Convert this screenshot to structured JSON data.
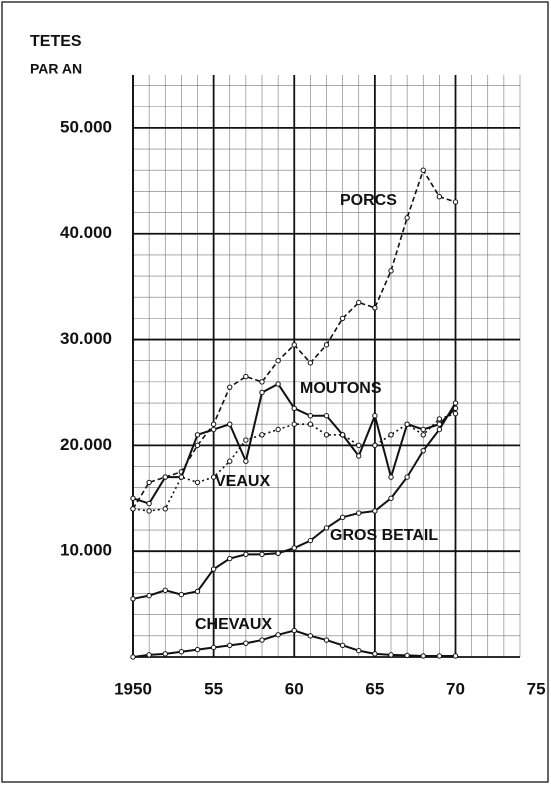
{
  "chart_data": {
    "type": "line",
    "ylabel": [
      "TETES",
      "PAR AN"
    ],
    "x": [
      1950,
      1951,
      1952,
      1953,
      1954,
      1955,
      1956,
      1957,
      1958,
      1959,
      1960,
      1961,
      1962,
      1963,
      1964,
      1965,
      1966,
      1967,
      1968,
      1969,
      1970
    ],
    "series": [
      {
        "name": "PORCS",
        "color": "#111111",
        "style": "dashed",
        "values": [
          14000,
          16500,
          17000,
          17500,
          20000,
          22000,
          25500,
          26500,
          26000,
          28000,
          29500,
          27800,
          29500,
          32000,
          33500,
          33000,
          36500,
          41500,
          46000,
          43500,
          43000
        ]
      },
      {
        "name": "MOUTONS",
        "color": "#111111",
        "style": "solid",
        "values": [
          15000,
          14500,
          17000,
          17000,
          21000,
          21500,
          22000,
          18500,
          25000,
          25800,
          23500,
          22800,
          22800,
          21000,
          19000,
          22800,
          17000,
          22000,
          21500,
          22000,
          23500
        ]
      },
      {
        "name": "VEAUX",
        "color": "#111111",
        "style": "dotted",
        "values": [
          14000,
          13800,
          14000,
          17000,
          16500,
          17000,
          18500,
          20500,
          21000,
          21500,
          22000,
          22000,
          21000,
          21000,
          20000,
          20000,
          21000,
          22000,
          21000,
          22500,
          23000
        ]
      },
      {
        "name": "GROS BETAIL",
        "color": "#111111",
        "style": "solid",
        "values": [
          5500,
          5800,
          6300,
          5900,
          6200,
          8300,
          9300,
          9700,
          9700,
          9800,
          10300,
          11000,
          12200,
          13200,
          13600,
          13800,
          15000,
          17000,
          19500,
          21500,
          24000
        ]
      },
      {
        "name": "CHEVAUX",
        "color": "#111111",
        "style": "solid",
        "values": [
          0,
          200,
          300,
          500,
          700,
          900,
          1100,
          1300,
          1600,
          2100,
          2500,
          2000,
          1600,
          1100,
          600,
          300,
          200,
          150,
          100,
          100,
          100
        ]
      }
    ],
    "xlim": [
      1950,
      1974
    ],
    "ylim": [
      0,
      55000
    ],
    "xticks": [
      1950,
      {
        "value": 1955,
        "label": "55"
      },
      {
        "value": 1960,
        "label": "60"
      },
      {
        "value": 1965,
        "label": "65"
      },
      {
        "value": 1970,
        "label": "70"
      },
      {
        "value": 1975,
        "label": "75"
      }
    ],
    "yticks": [
      {
        "value": 10000,
        "label": "10.000"
      },
      {
        "value": 20000,
        "label": "20.000"
      },
      {
        "value": 30000,
        "label": "30.000"
      },
      {
        "value": 40000,
        "label": "40.000"
      },
      {
        "value": 50000,
        "label": "50.000"
      }
    ],
    "grid": true
  }
}
